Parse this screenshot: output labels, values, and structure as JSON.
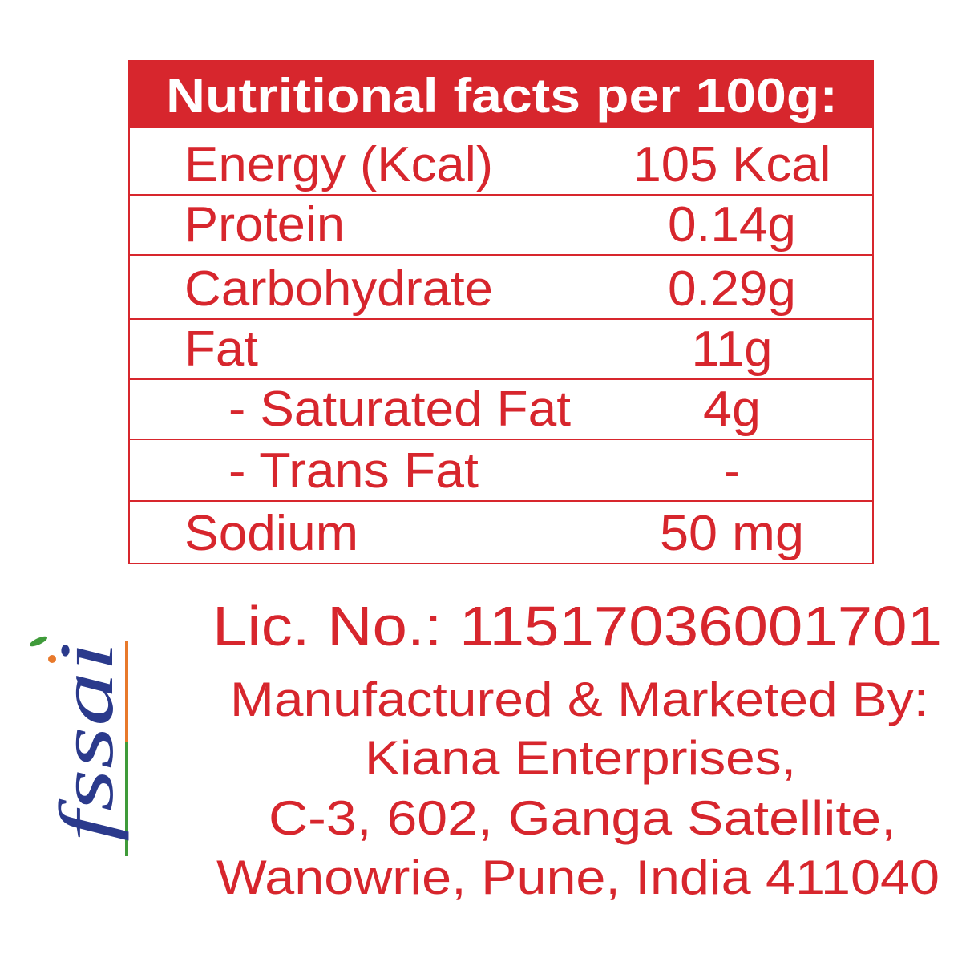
{
  "header": {
    "title": "Nutritional facts per 100g:"
  },
  "table": {
    "rows": [
      [
        "Energy (Kcal)",
        "105 Kcal"
      ],
      [
        "Protein",
        "0.14g"
      ],
      [
        "Carbohydrate",
        "0.29g"
      ],
      [
        "Fat",
        "11g"
      ],
      [
        "- Saturated Fat",
        "4g"
      ],
      [
        "- Trans Fat",
        "-"
      ],
      [
        "Sodium",
        "50 mg"
      ]
    ]
  },
  "logo": {
    "text": "fssai"
  },
  "license": "Lic. No.: 11517036001701",
  "address": [
    "Manufactured & Marketed By:",
    "Kiana Enterprises,",
    "C-3, 602, Ganga Satellite,",
    "Wanowrie, Pune, India 411040"
  ]
}
